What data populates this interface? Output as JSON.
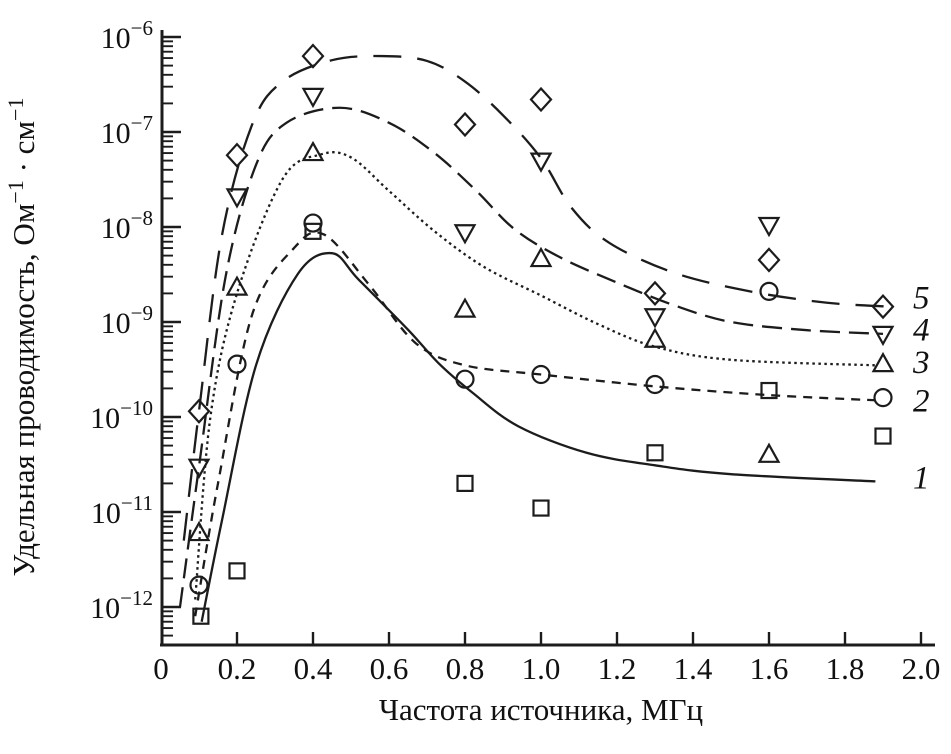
{
  "figure": {
    "background": "#ffffff",
    "ink_color": "#1c1c1c",
    "text_color": "#111111"
  },
  "chart_data": {
    "type": "scatter",
    "title": "",
    "xlabel": "Частота источника, МГц",
    "ylabel": "Удельная проводимость, Ом⁻¹ · см⁻¹",
    "ylabel_parts": [
      {
        "t": "Удельная проводимость, Ом"
      },
      {
        "t": "−1",
        "sup": true
      },
      {
        "t": " · см"
      },
      {
        "t": "−1",
        "sup": true
      }
    ],
    "xlim": [
      0,
      2.0
    ],
    "x_tick_values": [
      0,
      0.2,
      0.4,
      0.6,
      0.8,
      1.0,
      1.2,
      1.4,
      1.6,
      1.8,
      2.0
    ],
    "x_tick_labels": [
      "0",
      "0.2",
      "0.4",
      "0.6",
      "0.8",
      "1.0",
      "1.2",
      "1.4",
      "1.6",
      "1.8",
      "2.0"
    ],
    "y_scale": "log",
    "y_tick_exponents": [
      -6,
      -7,
      -8,
      -9,
      -10,
      -11,
      -12
    ],
    "y_tick_base": "10",
    "ylim": [
      4e-13,
      1e-06
    ],
    "grid": false,
    "legend_position": "right-edge-curve-numbers",
    "series": [
      {
        "id": 1,
        "label": "1",
        "marker": "square",
        "line": "solid",
        "dash": "",
        "points": [
          [
            0.105,
            8e-13
          ],
          [
            0.2,
            2.4e-12
          ],
          [
            0.4,
            9e-09
          ],
          [
            0.8,
            2e-11
          ],
          [
            1.0,
            1.1e-11
          ],
          [
            1.3,
            4.2e-11
          ],
          [
            1.6,
            1.9e-10
          ],
          [
            1.9,
            6.3e-11
          ]
        ],
        "curve": [
          [
            0.107,
            7e-13
          ],
          [
            0.16,
            8e-12
          ],
          [
            0.25,
            3.5e-10
          ],
          [
            0.36,
            3.2e-09
          ],
          [
            0.45,
            5.3e-09
          ],
          [
            0.52,
            2.8e-09
          ],
          [
            0.65,
            8.3e-10
          ],
          [
            0.73,
            3.7e-10
          ],
          [
            0.82,
            1.8e-10
          ],
          [
            0.94,
            8e-11
          ],
          [
            1.12,
            4.2e-11
          ],
          [
            1.3,
            3.1e-11
          ],
          [
            1.5,
            2.5e-11
          ],
          [
            1.88,
            2.1e-11
          ]
        ],
        "label_value": 2.3e-11
      },
      {
        "id": 2,
        "label": "2",
        "marker": "circle",
        "line": "short-dash",
        "dash": "9 7",
        "points": [
          [
            0.1,
            1.7e-12
          ],
          [
            0.2,
            3.6e-10
          ],
          [
            0.4,
            1.1e-08
          ],
          [
            0.8,
            2.5e-10
          ],
          [
            1.0,
            2.8e-10
          ],
          [
            1.3,
            2.2e-10
          ],
          [
            1.6,
            2.1e-09
          ],
          [
            1.9,
            1.6e-10
          ]
        ],
        "curve": [
          [
            0.09,
            8e-13
          ],
          [
            0.15,
            2e-11
          ],
          [
            0.24,
            1.2e-09
          ],
          [
            0.35,
            6e-09
          ],
          [
            0.43,
            8.3e-09
          ],
          [
            0.55,
            2.4e-09
          ],
          [
            0.67,
            6e-10
          ],
          [
            0.8,
            3.5e-10
          ],
          [
            1.0,
            2.8e-10
          ],
          [
            1.3,
            2.1e-10
          ],
          [
            1.6,
            1.7e-10
          ],
          [
            1.88,
            1.5e-10
          ]
        ],
        "label_value": 1.5e-10
      },
      {
        "id": 3,
        "label": "3",
        "marker": "triangle-up",
        "line": "dotted",
        "dash": "2.5 3.5",
        "points": [
          [
            0.1,
            6e-12
          ],
          [
            0.2,
            2.3e-09
          ],
          [
            0.4,
            6e-08
          ],
          [
            0.8,
            1.35e-09
          ],
          [
            1.0,
            4.6e-09
          ],
          [
            1.3,
            6.5e-10
          ],
          [
            1.6,
            4e-11
          ],
          [
            1.9,
            3.6e-10
          ]
        ],
        "curve": [
          [
            0.09,
            1.2e-12
          ],
          [
            0.13,
            1e-10
          ],
          [
            0.2,
            2e-09
          ],
          [
            0.32,
            3.2e-08
          ],
          [
            0.42,
            5.8e-08
          ],
          [
            0.5,
            5.4e-08
          ],
          [
            0.6,
            2.4e-08
          ],
          [
            0.72,
            9e-09
          ],
          [
            0.85,
            3.8e-09
          ],
          [
            1.0,
            1.9e-09
          ],
          [
            1.15,
            9.5e-10
          ],
          [
            1.3,
            5.5e-10
          ],
          [
            1.5,
            4e-10
          ],
          [
            1.88,
            3.5e-10
          ]
        ],
        "label_value": 3.8e-10
      },
      {
        "id": 4,
        "label": "4",
        "marker": "triangle-down",
        "line": "medium-dash",
        "dash": "20 9",
        "points": [
          [
            0.1,
            3e-11
          ],
          [
            0.2,
            2.1e-08
          ],
          [
            0.4,
            2.4e-07
          ],
          [
            0.8,
            8.8e-09
          ],
          [
            1.0,
            5e-08
          ],
          [
            1.3,
            1.15e-09
          ],
          [
            1.6,
            1.05e-08
          ],
          [
            1.9,
            7.5e-10
          ]
        ],
        "curve": [
          [
            0.05,
            1e-12
          ],
          [
            0.1,
            3e-11
          ],
          [
            0.17,
            3e-09
          ],
          [
            0.25,
            4.5e-08
          ],
          [
            0.33,
            1.25e-07
          ],
          [
            0.47,
            1.8e-07
          ],
          [
            0.6,
            1.25e-07
          ],
          [
            0.72,
            6e-08
          ],
          [
            0.83,
            2.4e-08
          ],
          [
            0.93,
            9.5e-09
          ],
          [
            1.05,
            4.8e-09
          ],
          [
            1.2,
            2.6e-09
          ],
          [
            1.35,
            1.5e-09
          ],
          [
            1.5,
            1e-09
          ],
          [
            1.7,
            8.2e-10
          ],
          [
            1.9,
            7.5e-10
          ]
        ],
        "label_value": 8.3e-10
      },
      {
        "id": 5,
        "label": "5",
        "marker": "diamond",
        "line": "long-dash",
        "dash": "28 16",
        "points": [
          [
            0.1,
            1.15e-10
          ],
          [
            0.2,
            5.7e-08
          ],
          [
            0.4,
            6.3e-07
          ],
          [
            0.8,
            1.2e-07
          ],
          [
            1.0,
            2.2e-07
          ],
          [
            1.3,
            2e-09
          ],
          [
            1.6,
            4.5e-09
          ],
          [
            1.9,
            1.45e-09
          ]
        ],
        "curve": [
          [
            0.06,
            5e-12
          ],
          [
            0.1,
            1.15e-10
          ],
          [
            0.16,
            8e-09
          ],
          [
            0.24,
            1.2e-07
          ],
          [
            0.32,
            3.4e-07
          ],
          [
            0.45,
            5.7e-07
          ],
          [
            0.58,
            6.3e-07
          ],
          [
            0.7,
            5.6e-07
          ],
          [
            0.8,
            3.4e-07
          ],
          [
            0.9,
            1.5e-07
          ],
          [
            1.0,
            5.3e-08
          ],
          [
            1.08,
            1.6e-08
          ],
          [
            1.18,
            6.8e-09
          ],
          [
            1.35,
            3.3e-09
          ],
          [
            1.55,
            2.1e-09
          ],
          [
            1.75,
            1.6e-09
          ],
          [
            1.92,
            1.45e-09
          ]
        ],
        "label_value": 1.8e-09
      }
    ]
  }
}
